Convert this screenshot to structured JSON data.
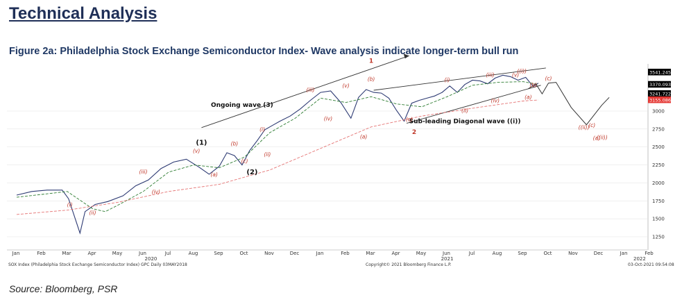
{
  "header": {
    "title": "Technical Analysis",
    "figure_title": "Figure 2a: Philadelphia Stock Exchange Semiconductor Index- Wave analysis indicate longer-term bull run",
    "source": "Source: Bloomberg, PSR"
  },
  "chart_data": {
    "type": "line",
    "title": "Figure 2a: Philadelphia Stock Exchange Semiconductor Index- Wave analysis indicate longer-term bull run",
    "x_ticks": [
      "Jan",
      "Feb",
      "Mar",
      "Apr",
      "May",
      "Jun",
      "Jul",
      "Aug",
      "Sep",
      "Oct",
      "Nov",
      "Dec",
      "Jan",
      "Feb",
      "Mar",
      "Apr",
      "May",
      "Jun",
      "Jul",
      "Aug",
      "Sep",
      "Oct",
      "Nov",
      "Dec",
      "Jan",
      "Feb"
    ],
    "year_labels": [
      "2020",
      "2021",
      "2022"
    ],
    "y_ticks": [
      1250,
      1500,
      1750,
      2000,
      2250,
      2500,
      2750,
      3000
    ],
    "ylim": [
      1100,
      3650
    ],
    "price_labels": [
      {
        "value": 3541.245,
        "text": "3541.245",
        "color": "#000000"
      },
      {
        "value": 3370.093,
        "text": "3370.093",
        "color": "#000000"
      },
      {
        "value": 3241.722,
        "text": "3241.722",
        "color": "#000000"
      },
      {
        "value": 3155.086,
        "text": "3155.086",
        "color": "#e53935"
      }
    ],
    "series": [
      {
        "kind": "price",
        "color": "#2d3a73",
        "x": [
          0,
          0.6,
          1.2,
          1.8,
          2.05,
          2.2,
          2.5,
          2.7,
          3.1,
          3.6,
          4.2,
          4.7,
          5.2,
          5.7,
          6.2,
          6.7,
          7.2,
          7.6,
          8.0,
          8.3,
          8.6,
          8.9,
          9.2,
          9.5,
          9.8,
          10.1,
          10.4,
          10.8,
          11.2,
          11.6,
          12.0,
          12.4,
          12.8,
          13.2,
          13.5,
          13.8,
          14.1,
          14.4,
          14.7,
          15.0,
          15.3,
          15.6,
          15.9,
          16.2,
          16.5,
          16.8,
          17.1,
          17.4,
          17.7,
          18.0,
          18.3,
          18.6,
          18.9,
          19.2,
          19.5,
          19.8,
          20.1,
          20.4,
          20.6
        ],
        "y": [
          1830,
          1880,
          1900,
          1900,
          1780,
          1620,
          1300,
          1600,
          1700,
          1740,
          1820,
          1960,
          2040,
          2200,
          2290,
          2330,
          2220,
          2120,
          2230,
          2420,
          2380,
          2250,
          2450,
          2590,
          2740,
          2800,
          2860,
          2930,
          3030,
          3150,
          3260,
          3280,
          3120,
          2900,
          3190,
          3300,
          3260,
          3250,
          3180,
          3010,
          2860,
          3110,
          3150,
          3180,
          3210,
          3260,
          3350,
          3260,
          3370,
          3430,
          3420,
          3380,
          3460,
          3500,
          3480,
          3430,
          3470,
          3340,
          3390
        ]
      },
      {
        "kind": "sma-short",
        "color": "#2e7d32",
        "x": [
          0,
          1,
          2,
          2.5,
          3,
          3.5,
          4,
          5,
          6,
          7,
          8,
          9,
          10,
          11,
          12,
          13,
          14,
          15,
          16,
          17,
          18,
          19,
          20,
          20.6
        ],
        "y": [
          1800,
          1840,
          1880,
          1760,
          1640,
          1600,
          1690,
          1880,
          2150,
          2250,
          2210,
          2360,
          2700,
          2900,
          3180,
          3120,
          3200,
          3100,
          3060,
          3200,
          3360,
          3400,
          3410,
          3370
        ]
      },
      {
        "kind": "sma-long",
        "color": "#e57373",
        "x": [
          0,
          2,
          4,
          6,
          8,
          10,
          12,
          14,
          16,
          18,
          20,
          20.6
        ],
        "y": [
          1560,
          1620,
          1730,
          1880,
          1980,
          2180,
          2480,
          2780,
          2930,
          3040,
          3140,
          3155
        ]
      }
    ]
  },
  "annotations": {
    "ongoing_wave": "Ongoing wave (3)",
    "sub_leading": "Sub-leading Diagonal wave ((i))",
    "major_1": "(1)",
    "major_2": "(2)",
    "red_1": "1",
    "red_2": "2",
    "wave_labels": [
      "(i)",
      "(ii)",
      "(iii)",
      "(iv)",
      "(v)",
      "(a)",
      "(b)",
      "(c)",
      "(i)",
      "(ii)",
      "(iii)",
      "(iv)",
      "(v)",
      "(a)",
      "(b)",
      "(c)",
      "(i)",
      "(ii)",
      "(iii)",
      "(iv)",
      "(v)",
      "((i))",
      "(a)",
      "(b)",
      "(c)",
      "((ii))",
      "(a)",
      "(b)",
      "(c)"
    ],
    "projection_labels": [
      "(c)",
      "((ii))"
    ]
  },
  "footer": {
    "left": "SOX Index (Philadelphia Stock Exchange Semiconductor Index) GPC  Daily 03MAY2018",
    "center": "Copyright© 2021 Bloomberg Finance L.P.",
    "right": "03-Oct-2021 09:54:08"
  }
}
